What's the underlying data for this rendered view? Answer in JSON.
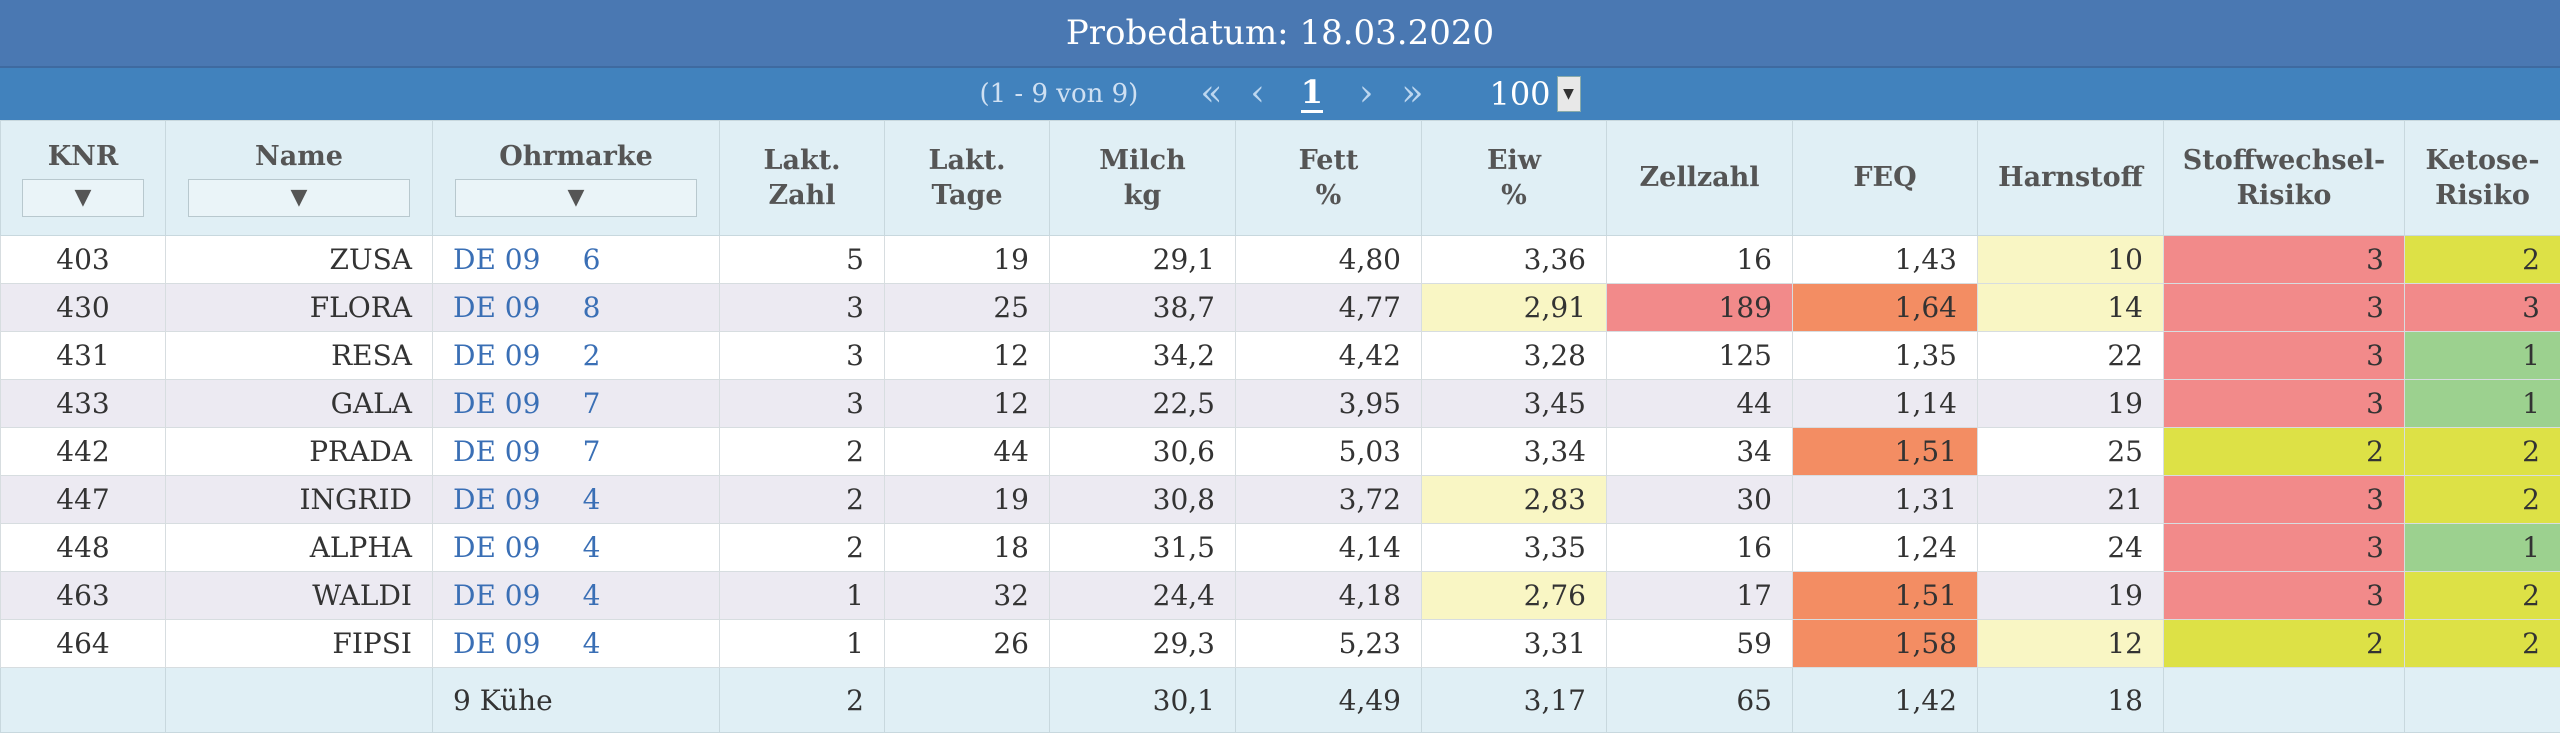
{
  "title": "Probedatum: 18.03.2020",
  "pager": {
    "range": "(1 - 9 von 9)",
    "first": "«",
    "prev": "‹",
    "page": "1",
    "next": "›",
    "last": "»",
    "page_size": "100"
  },
  "columns": [
    {
      "l1": "KNR",
      "l2": ""
    },
    {
      "l1": "Name",
      "l2": ""
    },
    {
      "l1": "Ohrmarke",
      "l2": ""
    },
    {
      "l1": "Lakt.",
      "l2": "Zahl"
    },
    {
      "l1": "Lakt.",
      "l2": "Tage"
    },
    {
      "l1": "Milch",
      "l2": "kg"
    },
    {
      "l1": "Fett",
      "l2": "%"
    },
    {
      "l1": "Eiw",
      "l2": "%"
    },
    {
      "l1": "Zellzahl",
      "l2": ""
    },
    {
      "l1": "FEQ",
      "l2": ""
    },
    {
      "l1": "Harnstoff",
      "l2": ""
    },
    {
      "l1": "Stoffwechsel-",
      "l2": "Risiko"
    },
    {
      "l1": "Ketose-",
      "l2": "Risiko"
    }
  ],
  "colors": {
    "yellow_light": "#f9f6c4",
    "red_light": "#f28a8a",
    "orange": "#f38d63",
    "yellow": "#dde146",
    "green": "#9cd18f"
  },
  "rows": [
    {
      "knr": "403",
      "name": "ZUSA",
      "ohr_a": "DE 09",
      "ohr_b": "6",
      "lz": "5",
      "lt": "19",
      "milch": "29,1",
      "fett": "4,80",
      "eiw": "3,36",
      "zell": "16",
      "feq": "1,43",
      "harn": "10",
      "stoff": "3",
      "ketose": "2",
      "c": {
        "harn": "yellow_light",
        "stoff": "red_light",
        "ketose": "yellow"
      }
    },
    {
      "knr": "430",
      "name": "FLORA",
      "ohr_a": "DE 09",
      "ohr_b": "8",
      "lz": "3",
      "lt": "25",
      "milch": "38,7",
      "fett": "4,77",
      "eiw": "2,91",
      "zell": "189",
      "feq": "1,64",
      "harn": "14",
      "stoff": "3",
      "ketose": "3",
      "c": {
        "eiw": "yellow_light",
        "zell": "red_light",
        "feq": "orange",
        "harn": "yellow_light",
        "stoff": "red_light",
        "ketose": "red_light"
      }
    },
    {
      "knr": "431",
      "name": "RESA",
      "ohr_a": "DE 09",
      "ohr_b": "2",
      "lz": "3",
      "lt": "12",
      "milch": "34,2",
      "fett": "4,42",
      "eiw": "3,28",
      "zell": "125",
      "feq": "1,35",
      "harn": "22",
      "stoff": "3",
      "ketose": "1",
      "c": {
        "stoff": "red_light",
        "ketose": "green"
      }
    },
    {
      "knr": "433",
      "name": "GALA",
      "ohr_a": "DE 09",
      "ohr_b": "7",
      "lz": "3",
      "lt": "12",
      "milch": "22,5",
      "fett": "3,95",
      "eiw": "3,45",
      "zell": "44",
      "feq": "1,14",
      "harn": "19",
      "stoff": "3",
      "ketose": "1",
      "c": {
        "stoff": "red_light",
        "ketose": "green"
      }
    },
    {
      "knr": "442",
      "name": "PRADA",
      "ohr_a": "DE 09",
      "ohr_b": "7",
      "lz": "2",
      "lt": "44",
      "milch": "30,6",
      "fett": "5,03",
      "eiw": "3,34",
      "zell": "34",
      "feq": "1,51",
      "harn": "25",
      "stoff": "2",
      "ketose": "2",
      "c": {
        "feq": "orange",
        "stoff": "yellow",
        "ketose": "yellow"
      }
    },
    {
      "knr": "447",
      "name": "INGRID",
      "ohr_a": "DE 09",
      "ohr_b": "4",
      "lz": "2",
      "lt": "19",
      "milch": "30,8",
      "fett": "3,72",
      "eiw": "2,83",
      "zell": "30",
      "feq": "1,31",
      "harn": "21",
      "stoff": "3",
      "ketose": "2",
      "c": {
        "eiw": "yellow_light",
        "stoff": "red_light",
        "ketose": "yellow"
      }
    },
    {
      "knr": "448",
      "name": "ALPHA",
      "ohr_a": "DE 09",
      "ohr_b": "4",
      "lz": "2",
      "lt": "18",
      "milch": "31,5",
      "fett": "4,14",
      "eiw": "3,35",
      "zell": "16",
      "feq": "1,24",
      "harn": "24",
      "stoff": "3",
      "ketose": "1",
      "c": {
        "stoff": "red_light",
        "ketose": "green"
      }
    },
    {
      "knr": "463",
      "name": "WALDI",
      "ohr_a": "DE 09",
      "ohr_b": "4",
      "lz": "1",
      "lt": "32",
      "milch": "24,4",
      "fett": "4,18",
      "eiw": "2,76",
      "zell": "17",
      "feq": "1,51",
      "harn": "19",
      "stoff": "3",
      "ketose": "2",
      "c": {
        "eiw": "yellow_light",
        "feq": "orange",
        "stoff": "red_light",
        "ketose": "yellow"
      }
    },
    {
      "knr": "464",
      "name": "FIPSI",
      "ohr_a": "DE 09",
      "ohr_b": "4",
      "lz": "1",
      "lt": "26",
      "milch": "29,3",
      "fett": "5,23",
      "eiw": "3,31",
      "zell": "59",
      "feq": "1,58",
      "harn": "12",
      "stoff": "2",
      "ketose": "2",
      "c": {
        "feq": "orange",
        "harn": "yellow_light",
        "stoff": "yellow",
        "ketose": "yellow"
      }
    }
  ],
  "footer": {
    "count": "9 Kühe",
    "lz": "2",
    "milch": "30,1",
    "fett": "4,49",
    "eiw": "3,17",
    "zell": "65",
    "feq": "1,42",
    "harn": "18"
  }
}
